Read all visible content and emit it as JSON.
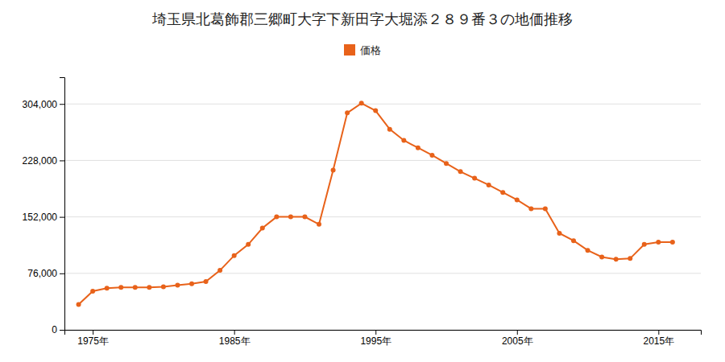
{
  "chart_data": {
    "type": "line",
    "title": "埼玉県北葛飾郡三郷町大字下新田字大堀添２８９番３の地価推移",
    "x": [
      1974,
      1975,
      1976,
      1977,
      1978,
      1979,
      1980,
      1981,
      1982,
      1983,
      1984,
      1985,
      1986,
      1987,
      1988,
      1989,
      1990,
      1991,
      1992,
      1993,
      1994,
      1995,
      1996,
      1997,
      1998,
      1999,
      2000,
      2001,
      2002,
      2003,
      2004,
      2005,
      2006,
      2007,
      2008,
      2009,
      2010,
      2011,
      2012,
      2013,
      2014,
      2015,
      2016
    ],
    "series": [
      {
        "name": "価格",
        "color": "#e8621a",
        "marker": "circle",
        "values": [
          34000,
          52000,
          56000,
          57000,
          57000,
          57000,
          58000,
          60000,
          62000,
          65000,
          80000,
          100000,
          115000,
          137000,
          152000,
          152000,
          152000,
          142000,
          215000,
          292000,
          305000,
          295000,
          270000,
          255000,
          245000,
          235000,
          224000,
          213000,
          204000,
          195000,
          185000,
          175000,
          163000,
          163000,
          130000,
          120000,
          107000,
          98000,
          95000,
          96000,
          115000,
          118000,
          118000
        ]
      }
    ],
    "xlim": [
      1973,
      2018
    ],
    "xticks": [
      {
        "value": 1975,
        "label": "1975年"
      },
      {
        "value": 1985,
        "label": "1985年"
      },
      {
        "value": 1995,
        "label": "1995年"
      },
      {
        "value": 2005,
        "label": "2005年"
      },
      {
        "value": 2015,
        "label": "2015年"
      }
    ],
    "ylim": [
      0,
      340000
    ],
    "yticks": [
      0,
      {
        "value": 76000,
        "label": "76,000"
      },
      {
        "value": 152000,
        "label": "152,000"
      },
      {
        "value": 228000,
        "label": "228,000"
      },
      {
        "value": 304000,
        "label": "304,000"
      }
    ],
    "grid": true,
    "legend": "top"
  }
}
